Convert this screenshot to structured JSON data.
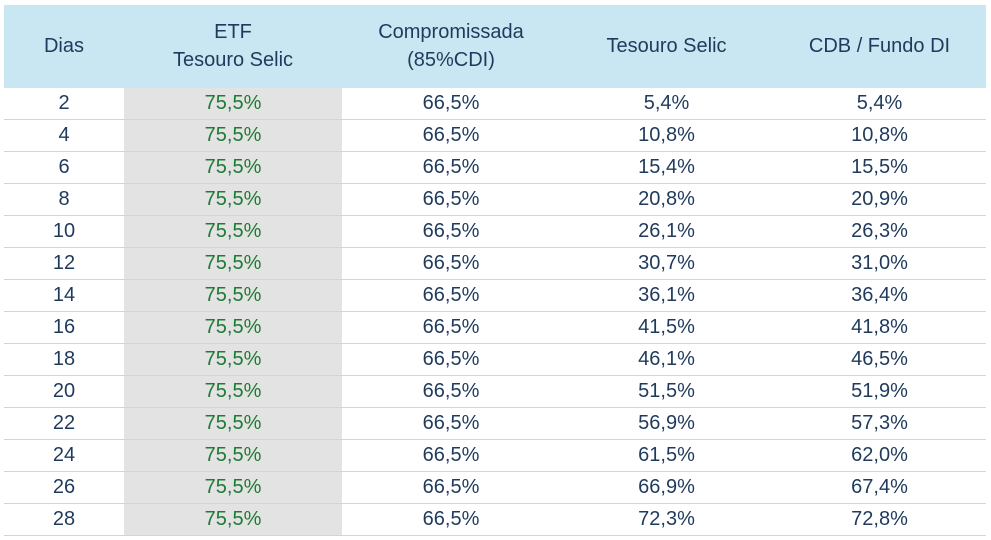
{
  "chart_data": {
    "type": "table",
    "columns": [
      {
        "id": "dias",
        "label": "Dias"
      },
      {
        "id": "etf_tesouro_selic",
        "label": "ETF\nTesouro Selic"
      },
      {
        "id": "compromissada",
        "label": "Compromissada\n(85%CDI)"
      },
      {
        "id": "tesouro_selic",
        "label": "Tesouro Selic"
      },
      {
        "id": "cdb_fundo_di",
        "label": "CDB / Fundo DI"
      }
    ],
    "rows": [
      {
        "dias": "2",
        "etf_tesouro_selic": "75,5%",
        "compromissada": "66,5%",
        "tesouro_selic": "5,4%",
        "cdb_fundo_di": "5,4%"
      },
      {
        "dias": "4",
        "etf_tesouro_selic": "75,5%",
        "compromissada": "66,5%",
        "tesouro_selic": "10,8%",
        "cdb_fundo_di": "10,8%"
      },
      {
        "dias": "6",
        "etf_tesouro_selic": "75,5%",
        "compromissada": "66,5%",
        "tesouro_selic": "15,4%",
        "cdb_fundo_di": "15,5%"
      },
      {
        "dias": "8",
        "etf_tesouro_selic": "75,5%",
        "compromissada": "66,5%",
        "tesouro_selic": "20,8%",
        "cdb_fundo_di": "20,9%"
      },
      {
        "dias": "10",
        "etf_tesouro_selic": "75,5%",
        "compromissada": "66,5%",
        "tesouro_selic": "26,1%",
        "cdb_fundo_di": "26,3%"
      },
      {
        "dias": "12",
        "etf_tesouro_selic": "75,5%",
        "compromissada": "66,5%",
        "tesouro_selic": "30,7%",
        "cdb_fundo_di": "31,0%"
      },
      {
        "dias": "14",
        "etf_tesouro_selic": "75,5%",
        "compromissada": "66,5%",
        "tesouro_selic": "36,1%",
        "cdb_fundo_di": "36,4%"
      },
      {
        "dias": "16",
        "etf_tesouro_selic": "75,5%",
        "compromissada": "66,5%",
        "tesouro_selic": "41,5%",
        "cdb_fundo_di": "41,8%"
      },
      {
        "dias": "18",
        "etf_tesouro_selic": "75,5%",
        "compromissada": "66,5%",
        "tesouro_selic": "46,1%",
        "cdb_fundo_di": "46,5%"
      },
      {
        "dias": "20",
        "etf_tesouro_selic": "75,5%",
        "compromissada": "66,5%",
        "tesouro_selic": "51,5%",
        "cdb_fundo_di": "51,9%"
      },
      {
        "dias": "22",
        "etf_tesouro_selic": "75,5%",
        "compromissada": "66,5%",
        "tesouro_selic": "56,9%",
        "cdb_fundo_di": "57,3%"
      },
      {
        "dias": "24",
        "etf_tesouro_selic": "75,5%",
        "compromissada": "66,5%",
        "tesouro_selic": "61,5%",
        "cdb_fundo_di": "62,0%"
      },
      {
        "dias": "26",
        "etf_tesouro_selic": "75,5%",
        "compromissada": "66,5%",
        "tesouro_selic": "66,9%",
        "cdb_fundo_di": "67,4%"
      },
      {
        "dias": "28",
        "etf_tesouro_selic": "75,5%",
        "compromissada": "66,5%",
        "tesouro_selic": "72,3%",
        "cdb_fundo_di": "72,8%"
      }
    ]
  },
  "colors": {
    "header_bg": "#c9e7f2",
    "text_navy": "#1f3a5c",
    "etf_bg": "#e3e3e3",
    "etf_green": "#1e7b32",
    "row_line": "#d4d4d4"
  }
}
